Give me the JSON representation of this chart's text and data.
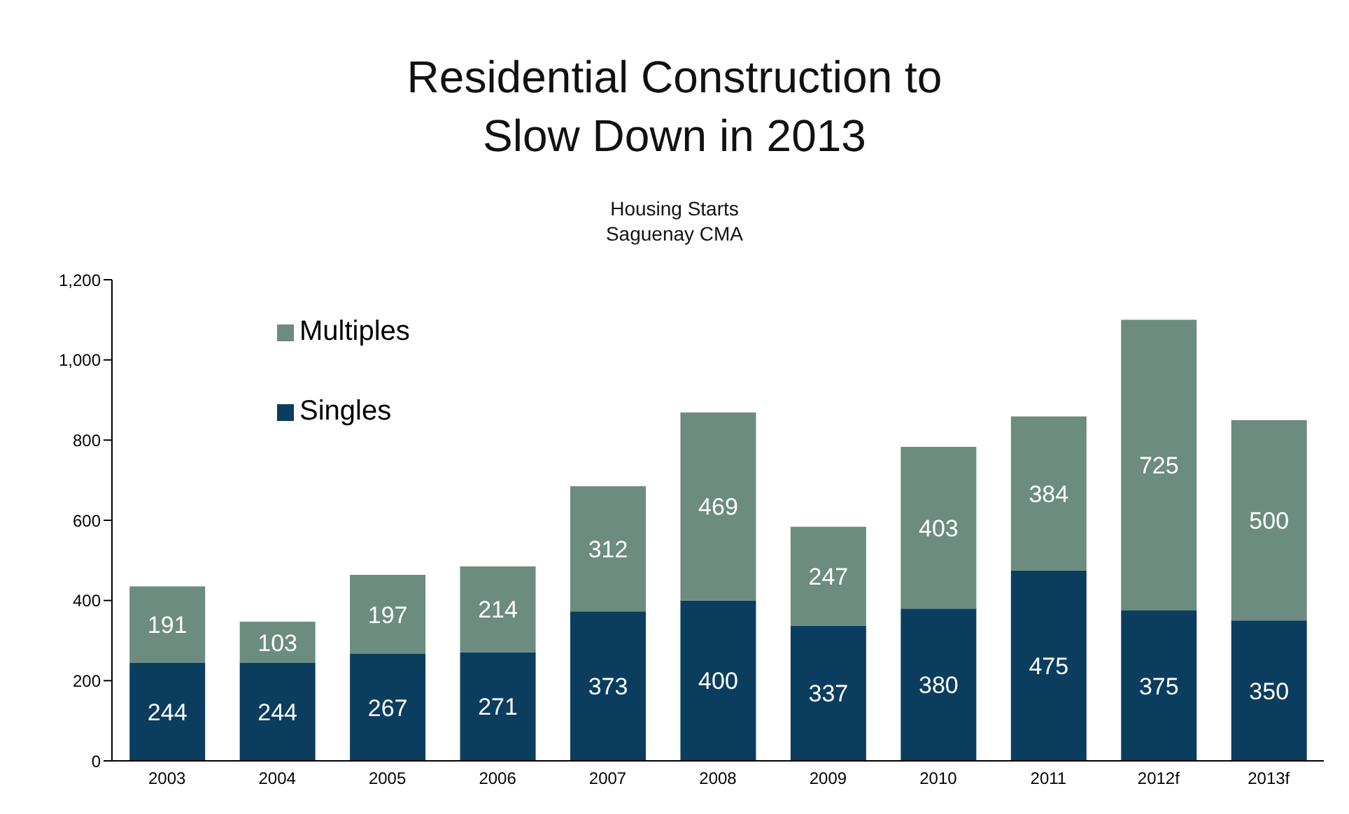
{
  "chart_data": {
    "type": "bar",
    "title": "Residential Construction to\nSlow Down in 2013",
    "subtitle": "Housing Starts\nSaguenay CMA",
    "categories": [
      "2003",
      "2004",
      "2005",
      "2006",
      "2007",
      "2008",
      "2009",
      "2010",
      "2011",
      "2012f",
      "2013f"
    ],
    "stacked": true,
    "data_labels": true,
    "legend": "top left",
    "grid": false,
    "ylim": [
      0,
      1200
    ],
    "yticks": [
      0,
      200,
      400,
      600,
      800,
      {
        "value": 1000,
        "label": "1,000"
      },
      {
        "value": 1200,
        "label": "1,200"
      }
    ],
    "series": [
      {
        "name": "Singles",
        "color": "#0b3d5e",
        "values": [
          244,
          244,
          267,
          271,
          373,
          400,
          337,
          380,
          475,
          375,
          350
        ]
      },
      {
        "name": "Multiples",
        "color": "#6b8c7e",
        "values": [
          191,
          103,
          197,
          214,
          312,
          469,
          247,
          403,
          384,
          725,
          500
        ]
      }
    ]
  }
}
